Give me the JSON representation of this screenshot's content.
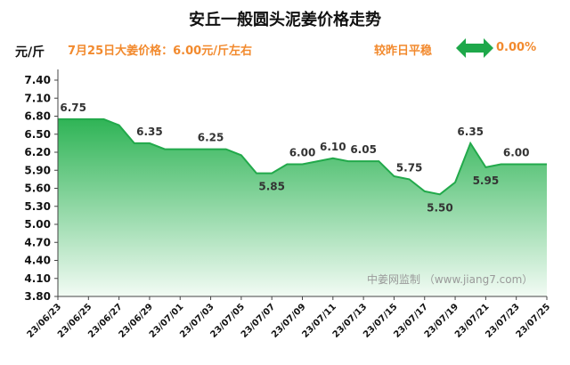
{
  "header": {
    "title": "安丘一般圆头泥姜价格走势",
    "unit": "元/斤",
    "price_text": "7月25日大姜价格：6.00元/斤左右",
    "compare_text": "较昨日平稳",
    "change_text": "0.00%"
  },
  "watermark": "中姜网监制 （www.jiang7.com）",
  "colors": {
    "line": "#22a94b",
    "fill_top": "#2fb456",
    "fill_bottom": "#f2fbf4",
    "accent": "#f28a2e",
    "arrow": "#1ea84a"
  },
  "icons": {
    "change": "double-arrow-icon"
  },
  "chart_data": {
    "type": "area",
    "title": "安丘一般圆头泥姜价格走势",
    "ylabel": "元/斤",
    "ylim": [
      3.8,
      7.4
    ],
    "yticks": [
      3.8,
      4.1,
      4.4,
      4.7,
      5.0,
      5.3,
      5.6,
      5.9,
      6.2,
      6.5,
      6.8,
      7.1,
      7.4
    ],
    "xticks": [
      "23/06/23",
      "23/06/25",
      "23/06/27",
      "23/06/29",
      "23/07/01",
      "23/07/03",
      "23/07/05",
      "23/07/07",
      "23/07/09",
      "23/07/11",
      "23/07/13",
      "23/07/15",
      "23/07/17",
      "23/07/19",
      "23/07/21",
      "23/07/23",
      "23/07/25"
    ],
    "x": [
      "23/06/23",
      "23/06/24",
      "23/06/25",
      "23/06/26",
      "23/06/27",
      "23/06/28",
      "23/06/29",
      "23/06/30",
      "23/07/01",
      "23/07/02",
      "23/07/03",
      "23/07/04",
      "23/07/05",
      "23/07/06",
      "23/07/07",
      "23/07/08",
      "23/07/09",
      "23/07/10",
      "23/07/11",
      "23/07/12",
      "23/07/13",
      "23/07/14",
      "23/07/15",
      "23/07/16",
      "23/07/17",
      "23/07/18",
      "23/07/19",
      "23/07/20",
      "23/07/21",
      "23/07/22",
      "23/07/23",
      "23/07/24",
      "23/07/25"
    ],
    "series": [
      {
        "values": [
          6.75,
          6.75,
          6.75,
          6.75,
          6.65,
          6.35,
          6.35,
          6.25,
          6.25,
          6.25,
          6.25,
          6.25,
          6.15,
          5.85,
          5.85,
          6.0,
          6.0,
          6.05,
          6.1,
          6.05,
          6.05,
          6.05,
          5.8,
          5.75,
          5.55,
          5.5,
          5.7,
          6.35,
          5.95,
          6.0,
          6.0,
          6.0,
          6.0
        ]
      }
    ],
    "data_labels": [
      {
        "x": "23/06/24",
        "text": "6.75",
        "pos": "above"
      },
      {
        "x": "23/06/29",
        "text": "6.35",
        "pos": "above"
      },
      {
        "x": "23/07/03",
        "text": "6.25",
        "pos": "above"
      },
      {
        "x": "23/07/07",
        "text": "5.85",
        "pos": "below"
      },
      {
        "x": "23/07/09",
        "text": "6.00",
        "pos": "above"
      },
      {
        "x": "23/07/11",
        "text": "6.10",
        "pos": "above"
      },
      {
        "x": "23/07/13",
        "text": "6.05",
        "pos": "above"
      },
      {
        "x": "23/07/16",
        "text": "5.75",
        "pos": "above"
      },
      {
        "x": "23/07/18",
        "text": "5.50",
        "pos": "below"
      },
      {
        "x": "23/07/20",
        "text": "6.35",
        "pos": "above"
      },
      {
        "x": "23/07/21",
        "text": "5.95",
        "pos": "below"
      },
      {
        "x": "23/07/23",
        "text": "6.00",
        "pos": "above"
      }
    ],
    "grid": false,
    "legend": "none"
  }
}
